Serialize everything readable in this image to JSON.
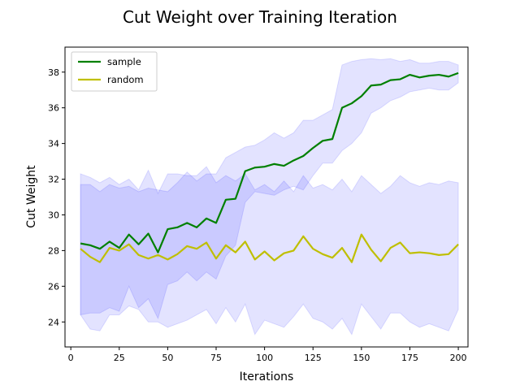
{
  "chart_data": {
    "type": "line",
    "title": "Cut Weight over Training Iteration",
    "xlabel": "Iterations",
    "ylabel": "Cut Weight",
    "xlim": [
      -3,
      205
    ],
    "ylim": [
      22.6,
      39.4
    ],
    "xticks": [
      0,
      25,
      50,
      75,
      100,
      125,
      150,
      175,
      200
    ],
    "yticks": [
      24,
      26,
      28,
      30,
      32,
      34,
      36,
      38
    ],
    "grid": false,
    "legend_position": "top-left",
    "x": [
      5,
      10,
      15,
      20,
      25,
      30,
      35,
      40,
      45,
      50,
      55,
      60,
      65,
      70,
      75,
      80,
      85,
      90,
      95,
      100,
      105,
      110,
      115,
      120,
      125,
      130,
      135,
      140,
      145,
      150,
      155,
      160,
      165,
      170,
      175,
      180,
      185,
      190,
      195,
      200
    ],
    "series": [
      {
        "name": "sample",
        "color": "#008000",
        "values": [
          28.4,
          28.3,
          28.1,
          28.5,
          28.15,
          28.9,
          28.35,
          28.95,
          27.9,
          29.2,
          29.3,
          29.55,
          29.3,
          29.8,
          29.55,
          30.85,
          30.9,
          32.45,
          32.65,
          32.7,
          32.85,
          32.75,
          33.05,
          33.3,
          33.75,
          34.15,
          34.25,
          36.0,
          36.25,
          36.65,
          37.25,
          37.3,
          37.55,
          37.6,
          37.85,
          37.7,
          37.8,
          37.85,
          37.75,
          37.95
        ],
        "upper": [
          31.7,
          31.7,
          31.3,
          31.7,
          31.5,
          31.6,
          31.3,
          31.5,
          31.4,
          31.3,
          31.8,
          32.4,
          31.9,
          32.3,
          32.3,
          33.2,
          33.5,
          33.8,
          33.9,
          34.2,
          34.6,
          34.3,
          34.6,
          35.3,
          35.3,
          35.6,
          35.9,
          38.4,
          38.6,
          38.7,
          38.75,
          38.7,
          38.75,
          38.6,
          38.7,
          38.5,
          38.5,
          38.6,
          38.6,
          38.4
        ],
        "lower": [
          24.4,
          24.5,
          24.5,
          24.8,
          24.6,
          26.0,
          24.8,
          25.3,
          24.2,
          26.1,
          26.3,
          26.8,
          26.3,
          26.8,
          26.4,
          27.7,
          28.3,
          30.7,
          31.3,
          31.2,
          31.1,
          31.4,
          31.6,
          31.4,
          32.2,
          32.9,
          32.9,
          33.6,
          34.0,
          34.6,
          35.7,
          36.0,
          36.4,
          36.6,
          36.9,
          37.0,
          37.1,
          37.0,
          37.0,
          37.4
        ]
      },
      {
        "name": "random",
        "color": "#bfbf00",
        "values": [
          28.1,
          27.65,
          27.35,
          28.15,
          28.0,
          28.35,
          27.75,
          27.55,
          27.75,
          27.5,
          27.8,
          28.25,
          28.1,
          28.45,
          27.55,
          28.3,
          27.9,
          28.5,
          27.5,
          27.95,
          27.45,
          27.85,
          28.0,
          28.8,
          28.1,
          27.8,
          27.6,
          28.15,
          27.35,
          28.9,
          28.05,
          27.4,
          28.15,
          28.45,
          27.85,
          27.9,
          27.85,
          27.75,
          27.8,
          28.35
        ],
        "upper": [
          32.3,
          32.1,
          31.8,
          32.1,
          31.7,
          32.0,
          31.4,
          32.5,
          31.2,
          32.3,
          32.3,
          32.2,
          32.2,
          32.7,
          31.8,
          32.2,
          31.9,
          32.3,
          31.4,
          31.7,
          31.3,
          31.9,
          31.3,
          32.2,
          31.5,
          31.7,
          31.4,
          32.0,
          31.3,
          32.2,
          31.7,
          31.2,
          31.6,
          32.2,
          31.8,
          31.6,
          31.8,
          31.7,
          31.9,
          31.8
        ],
        "lower": [
          24.4,
          23.6,
          23.5,
          24.4,
          24.4,
          24.9,
          24.7,
          24.0,
          24.0,
          23.7,
          23.9,
          24.1,
          24.4,
          24.7,
          23.9,
          24.8,
          24.0,
          25.0,
          23.3,
          24.1,
          23.9,
          23.7,
          24.3,
          25.0,
          24.2,
          24.0,
          23.6,
          24.2,
          23.3,
          25.0,
          24.3,
          23.6,
          24.5,
          24.5,
          24.0,
          23.7,
          23.9,
          23.7,
          23.5,
          24.7
        ]
      }
    ]
  }
}
